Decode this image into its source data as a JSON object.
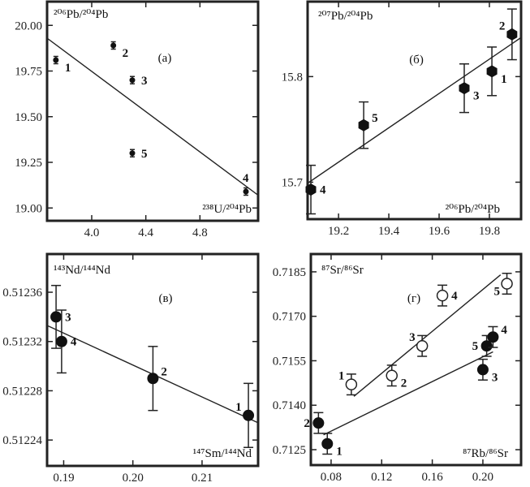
{
  "chart_data": [
    {
      "type": "scatter",
      "panel_label": "(a)",
      "xlabel": "²³⁸U/²⁰⁴Pb",
      "ylabel": "²⁰⁶Pb/²⁰⁴Pb",
      "xlim": [
        3.67,
        5.23
      ],
      "ylim": [
        18.93,
        20.13
      ],
      "xticks": [
        4.0,
        4.4,
        4.8
      ],
      "xtick_labels": [
        "4.0",
        "4.4",
        "4.8"
      ],
      "yticks": [
        19.0,
        19.25,
        19.5,
        19.75,
        20.0
      ],
      "ytick_labels": [
        "19.00",
        "19.25",
        "19.50",
        "19.75",
        "20.00"
      ],
      "series": [
        {
          "name": "samples",
          "marker": "filled",
          "points": [
            {
              "label": "1",
              "x": 3.735,
              "y": 19.81,
              "yerr": 0.02,
              "label_side": "right-below"
            },
            {
              "label": "2",
              "x": 4.16,
              "y": 19.89,
              "yerr": 0.02,
              "label_side": "right-below"
            },
            {
              "label": "3",
              "x": 4.3,
              "y": 19.7,
              "yerr": 0.02,
              "label_side": "right"
            },
            {
              "label": "5",
              "x": 4.3,
              "y": 19.3,
              "yerr": 0.02,
              "label_side": "right"
            },
            {
              "label": "4",
              "x": 5.14,
              "y": 19.09,
              "yerr": 0.02,
              "label_side": "above"
            }
          ]
        }
      ],
      "fit_lines": [
        {
          "x": [
            3.67,
            5.23
          ],
          "y": [
            19.93,
            19.07
          ]
        }
      ]
    },
    {
      "type": "scatter",
      "panel_label": "(б)",
      "xlabel": "²⁰⁶Pb/²⁰⁴Pb",
      "ylabel": "²⁰⁷Pb/²⁰⁴Pb",
      "xlim": [
        19.077,
        19.926
      ],
      "ylim": [
        15.665,
        15.871
      ],
      "xticks": [
        19.2,
        19.4,
        19.6,
        19.8
      ],
      "xtick_labels": [
        "19.2",
        "19.4",
        "19.6",
        "19.8"
      ],
      "yticks": [
        15.7,
        15.8
      ],
      "ytick_labels": [
        "15.7",
        "15.8"
      ],
      "series": [
        {
          "name": "samples",
          "marker": "hexagon",
          "points": [
            {
              "label": "4",
              "x": 19.09,
              "y": 15.693,
              "yerr": 0.023,
              "label_side": "right"
            },
            {
              "label": "5",
              "x": 19.3,
              "y": 15.754,
              "yerr": 0.022,
              "label_side": "right-above"
            },
            {
              "label": "3",
              "x": 19.7,
              "y": 15.789,
              "yerr": 0.023,
              "label_side": "right-below"
            },
            {
              "label": "1",
              "x": 19.81,
              "y": 15.805,
              "yerr": 0.023,
              "label_side": "right-below"
            },
            {
              "label": "2",
              "x": 19.89,
              "y": 15.84,
              "yerr": 0.024,
              "label_side": "left-above"
            }
          ]
        }
      ],
      "fit_lines": [
        {
          "x": [
            19.077,
            19.926
          ],
          "y": [
            15.699,
            15.837
          ]
        }
      ]
    },
    {
      "type": "scatter",
      "panel_label": "(в)",
      "xlabel": "¹⁴⁷Sm/¹⁴⁴Nd",
      "ylabel": "¹⁴³Nd/¹⁴⁴Nd",
      "xlim": [
        0.1876,
        0.2181
      ],
      "ylim": [
        0.512219,
        0.512391
      ],
      "xticks": [
        0.19,
        0.2,
        0.21
      ],
      "xtick_labels": [
        "0.19",
        "0.20",
        "0.21"
      ],
      "yticks": [
        0.51224,
        0.51228,
        0.51232,
        0.51236
      ],
      "ytick_labels": [
        "0.51224",
        "0.51228",
        "0.51232",
        "0.51236"
      ],
      "series": [
        {
          "name": "samples",
          "marker": "filled",
          "points": [
            {
              "label": "3",
              "x": 0.1889,
              "y": 0.51234,
              "yerr": 2.55e-05,
              "label_side": "right"
            },
            {
              "label": "4",
              "x": 0.1897,
              "y": 0.51232,
              "yerr": 2.55e-05,
              "label_side": "right"
            },
            {
              "label": "2",
              "x": 0.2029,
              "y": 0.51229,
              "yerr": 2.6e-05,
              "label_side": "right-above"
            },
            {
              "label": "1",
              "x": 0.2167,
              "y": 0.51226,
              "yerr": 2.6e-05,
              "label_side": "left-above"
            }
          ]
        }
      ],
      "fit_lines": [
        {
          "x": [
            0.1876,
            0.2181
          ],
          "y": [
            0.512333,
            0.512254
          ]
        }
      ]
    },
    {
      "type": "scatter",
      "panel_label": "(г)",
      "xlabel": "⁸⁷Rb/⁸⁶Sr",
      "ylabel": "⁸⁷Sr/⁸⁶Sr",
      "xlim": [
        0.064,
        0.2302
      ],
      "ylim": [
        0.71198,
        0.7191
      ],
      "xticks": [
        0.08,
        0.12,
        0.16,
        0.2
      ],
      "xtick_labels": [
        "0.08",
        "0.12",
        "0.16",
        "0.20"
      ],
      "yticks": [
        0.7125,
        0.714,
        0.7155,
        0.717,
        0.7185
      ],
      "ytick_labels": [
        "0.7125",
        "0.7140",
        "0.7155",
        "0.7170",
        "0.7185"
      ],
      "series": [
        {
          "name": "open",
          "marker": "open",
          "points": [
            {
              "label": "1",
              "x": 0.096,
              "y": 0.7147,
              "yerr": 0.00035,
              "label_side": "left-above"
            },
            {
              "label": "2",
              "x": 0.128,
              "y": 0.715,
              "yerr": 0.00035,
              "label_side": "right-below"
            },
            {
              "label": "3",
              "x": 0.152,
              "y": 0.716,
              "yerr": 0.00035,
              "label_side": "left-above"
            },
            {
              "label": "4",
              "x": 0.168,
              "y": 0.7177,
              "yerr": 0.00035,
              "label_side": "right"
            },
            {
              "label": "5",
              "x": 0.219,
              "y": 0.7181,
              "yerr": 0.00035,
              "label_side": "left-below"
            }
          ]
        },
        {
          "name": "filled",
          "marker": "filled",
          "points": [
            {
              "label": "2",
              "x": 0.07,
              "y": 0.7134,
              "yerr": 0.00035,
              "label_side": "left"
            },
            {
              "label": "1",
              "x": 0.077,
              "y": 0.7127,
              "yerr": 0.00035,
              "label_side": "right-below"
            },
            {
              "label": "3",
              "x": 0.2,
              "y": 0.7152,
              "yerr": 0.00035,
              "label_side": "right-below"
            },
            {
              "label": "5",
              "x": 0.203,
              "y": 0.716,
              "yerr": 0.00035,
              "label_side": "left"
            },
            {
              "label": "4",
              "x": 0.208,
              "y": 0.7163,
              "yerr": 0.00035,
              "label_side": "right-above"
            }
          ]
        }
      ],
      "fit_lines": [
        {
          "x": [
            0.098,
            0.214
          ],
          "y": [
            0.7143,
            0.7184
          ]
        },
        {
          "x": [
            0.074,
            0.208
          ],
          "y": [
            0.713,
            0.7158
          ]
        }
      ]
    }
  ]
}
